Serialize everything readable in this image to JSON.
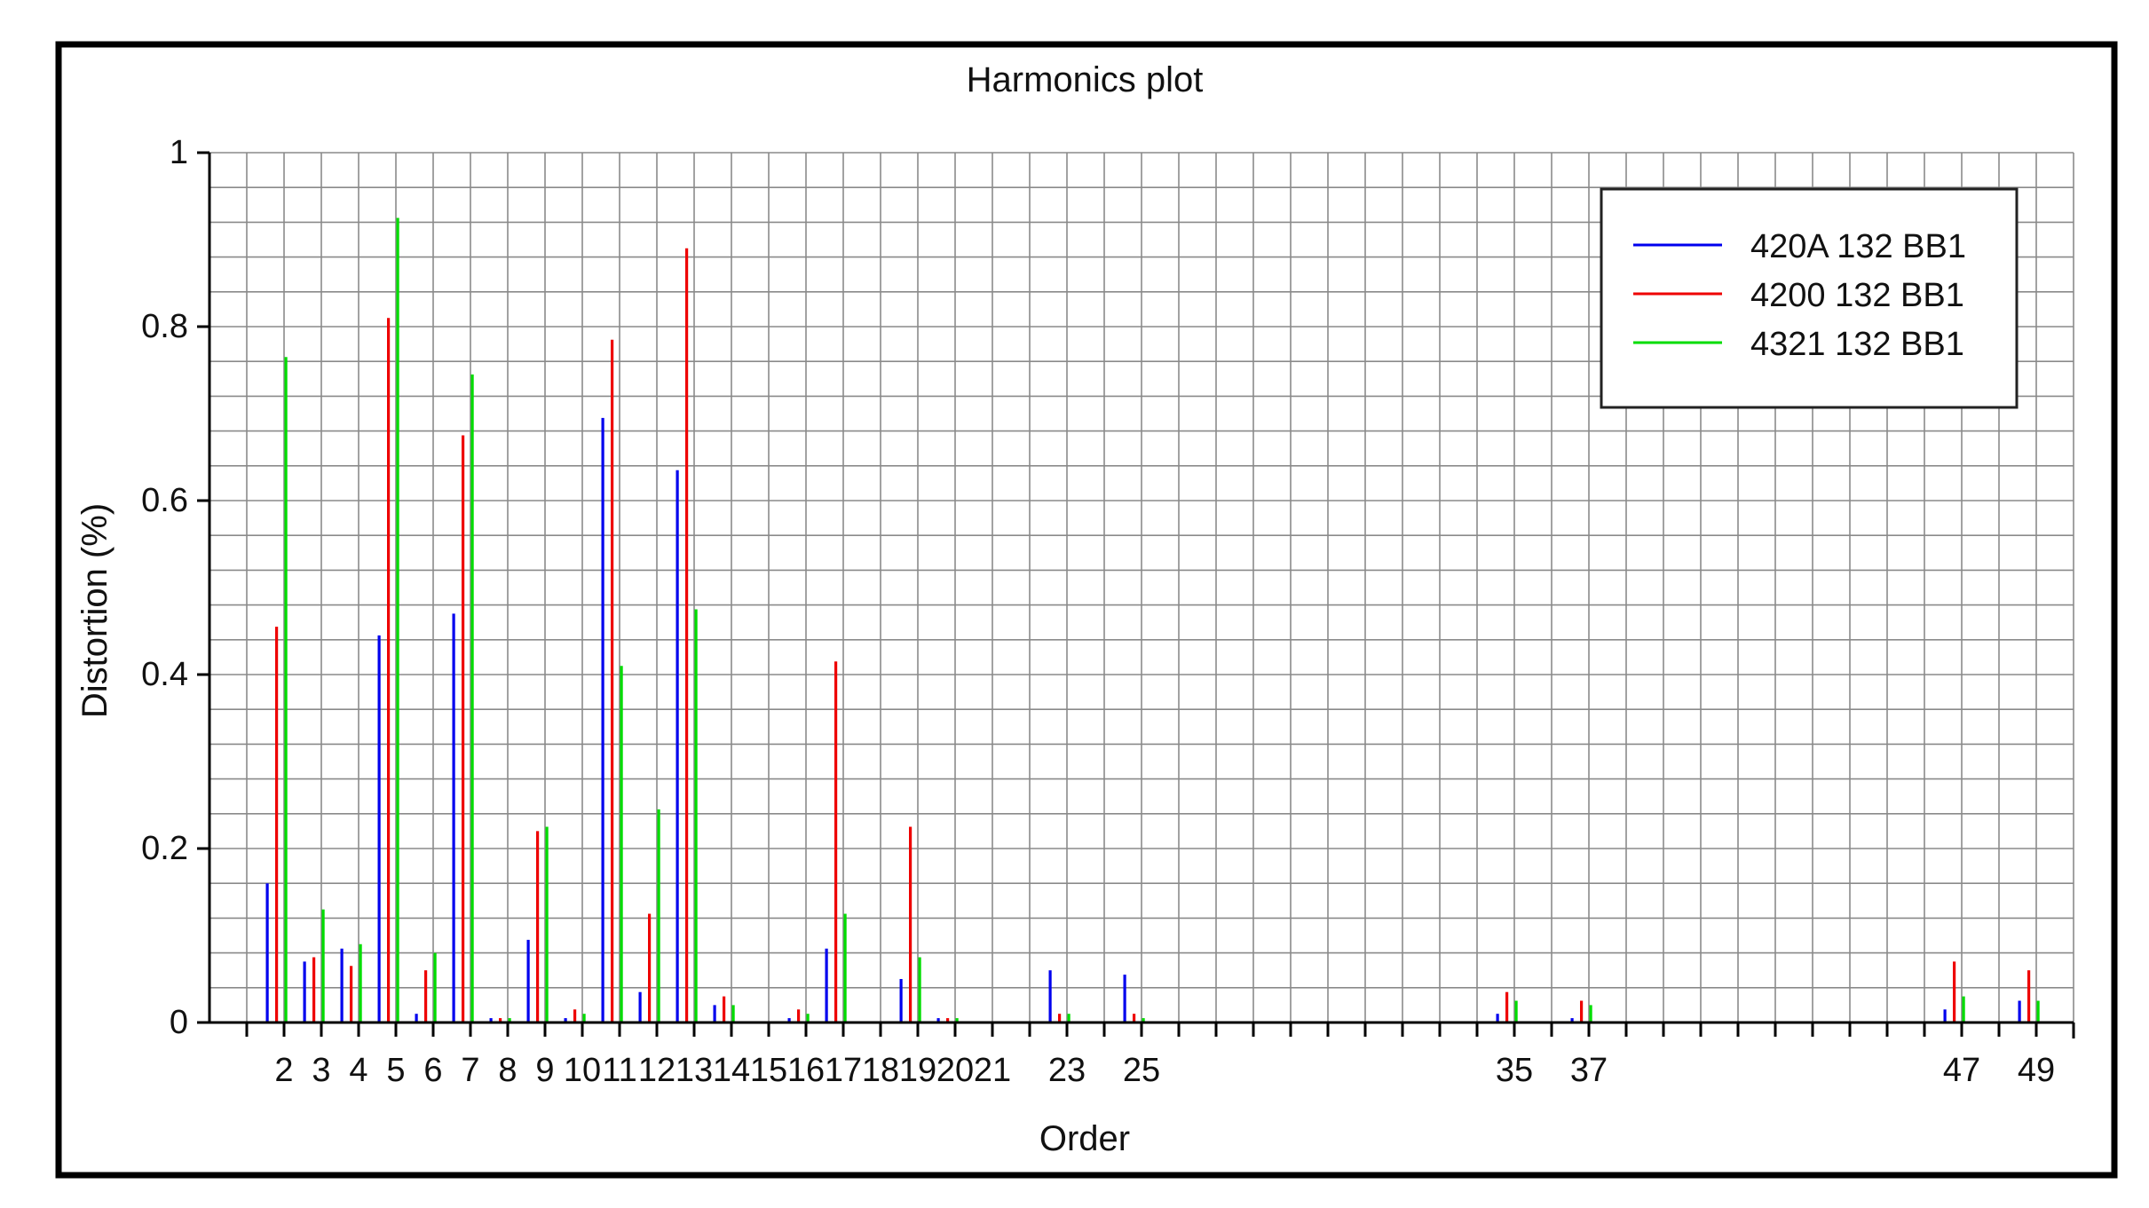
{
  "chart_data": {
    "type": "bar",
    "title": "Harmonics plot",
    "xlabel": "Order",
    "ylabel": "Distortion (%)",
    "ylim": [
      0,
      1
    ],
    "yticks": [
      "0",
      "0.2",
      "0.4",
      "0.6",
      "0.8",
      "1"
    ],
    "ytick_values": [
      0,
      0.2,
      0.4,
      0.6,
      0.8,
      1
    ],
    "xlim": [
      0,
      50
    ],
    "xtick_labels": [
      {
        "order": 2,
        "label": "2"
      },
      {
        "order": 3,
        "label": "3"
      },
      {
        "order": 4,
        "label": "4"
      },
      {
        "order": 5,
        "label": "5"
      },
      {
        "order": 6,
        "label": "6"
      },
      {
        "order": 7,
        "label": "7"
      },
      {
        "order": 8,
        "label": "8"
      },
      {
        "order": 9,
        "label": "9"
      },
      {
        "order": 10,
        "label": "10"
      },
      {
        "order": 11,
        "label": "11"
      },
      {
        "order": 12,
        "label": "12"
      },
      {
        "order": 13,
        "label": "13"
      },
      {
        "order": 14,
        "label": "14"
      },
      {
        "order": 15,
        "label": "15"
      },
      {
        "order": 16,
        "label": "16"
      },
      {
        "order": 17,
        "label": "17"
      },
      {
        "order": 18,
        "label": "18"
      },
      {
        "order": 19,
        "label": "19"
      },
      {
        "order": 20,
        "label": "20"
      },
      {
        "order": 21,
        "label": "21"
      },
      {
        "order": 23,
        "label": "23"
      },
      {
        "order": 25,
        "label": "25"
      },
      {
        "order": 35,
        "label": "35"
      },
      {
        "order": 37,
        "label": "37"
      },
      {
        "order": 47,
        "label": "47"
      },
      {
        "order": 49,
        "label": "49"
      }
    ],
    "grid": true,
    "legend_position": "top-right",
    "x": [
      2,
      3,
      4,
      5,
      6,
      7,
      8,
      9,
      10,
      11,
      12,
      13,
      14,
      15,
      16,
      17,
      18,
      19,
      20,
      21,
      23,
      25,
      35,
      37,
      47,
      49
    ],
    "series": [
      {
        "name": "420A 132 BB1",
        "color": "#0000ee",
        "values": [
          0.16,
          0.07,
          0.085,
          0.445,
          0.01,
          0.47,
          0.005,
          0.095,
          0.005,
          0.695,
          0.035,
          0.635,
          0.02,
          0.0,
          0.005,
          0.085,
          0.0,
          0.05,
          0.005,
          0.0,
          0.06,
          0.055,
          0.01,
          0.005,
          0.015,
          0.025
        ]
      },
      {
        "name": "4200 132 BB1",
        "color": "#ee0000",
        "values": [
          0.455,
          0.075,
          0.065,
          0.81,
          0.06,
          0.675,
          0.005,
          0.22,
          0.015,
          0.785,
          0.125,
          0.89,
          0.03,
          0.0,
          0.015,
          0.415,
          0.0,
          0.225,
          0.005,
          0.0,
          0.01,
          0.01,
          0.035,
          0.025,
          0.07,
          0.06
        ]
      },
      {
        "name": "4321 132 BB1",
        "color": "#00dd00",
        "values": [
          0.765,
          0.13,
          0.09,
          0.925,
          0.08,
          0.745,
          0.005,
          0.225,
          0.01,
          0.41,
          0.245,
          0.475,
          0.02,
          0.0,
          0.01,
          0.125,
          0.0,
          0.075,
          0.005,
          0.0,
          0.01,
          0.005,
          0.025,
          0.02,
          0.03,
          0.025
        ]
      }
    ]
  }
}
